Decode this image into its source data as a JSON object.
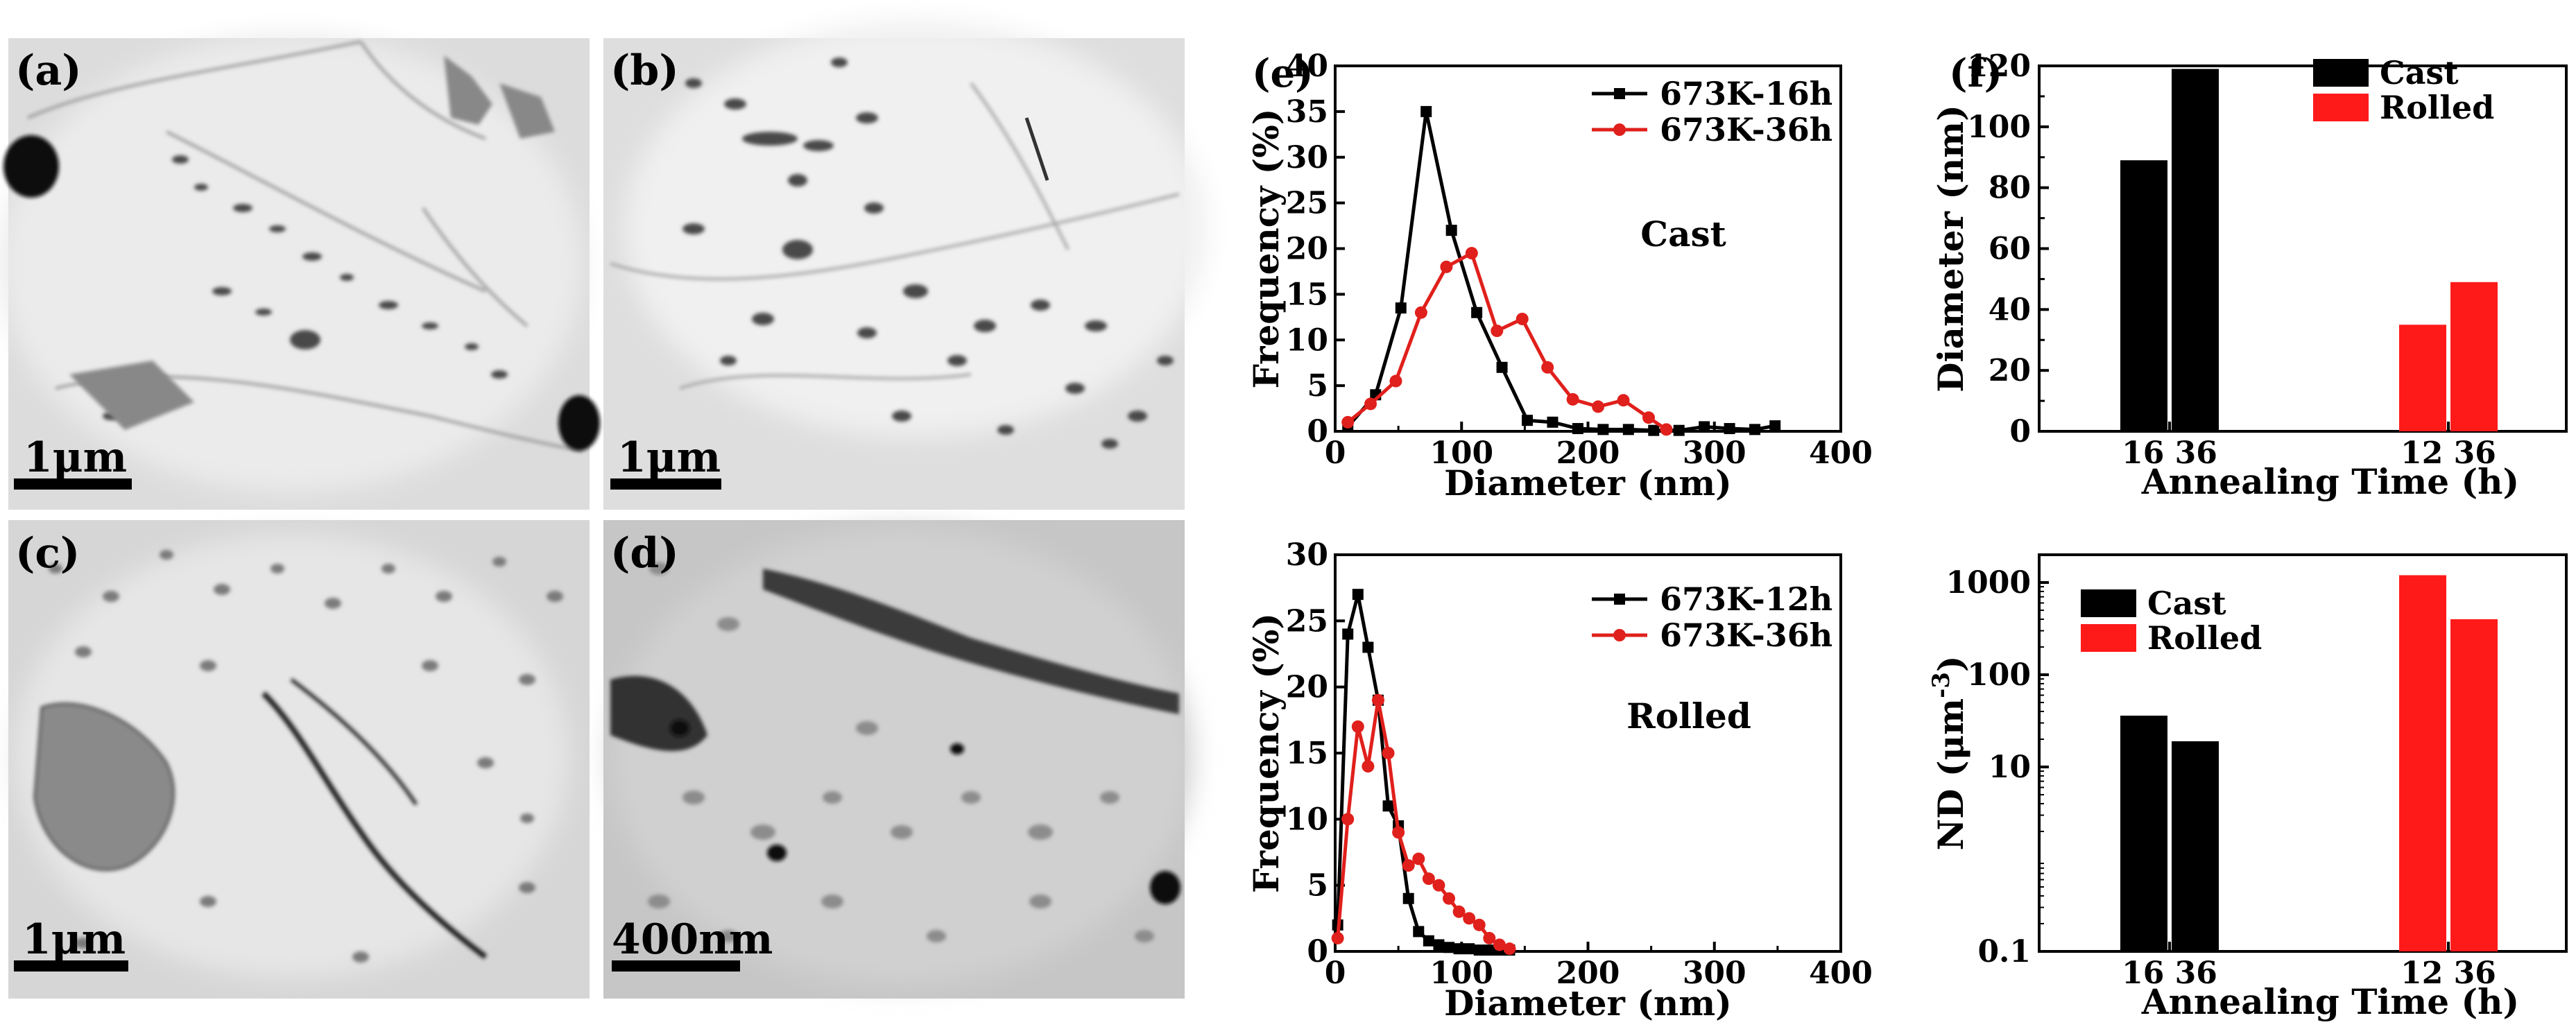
{
  "micrographs": [
    {
      "label": "(a)",
      "scale_bar": "1μm"
    },
    {
      "label": "(b)",
      "scale_bar": "1μm"
    },
    {
      "label": "(c)",
      "scale_bar": "1μm"
    },
    {
      "label": "(d)",
      "scale_bar": "400nm"
    }
  ],
  "chart_data": [
    {
      "id": "e_top",
      "panel_label": "(e)",
      "type": "line",
      "annotation": "Cast",
      "xlabel": "Diameter (nm)",
      "ylabel": "Frequency (%)",
      "xlim": [
        0,
        400
      ],
      "ylim": [
        0,
        40
      ],
      "xticks": [
        0,
        100,
        200,
        300,
        400
      ],
      "yticks": [
        0,
        5,
        10,
        15,
        20,
        25,
        30,
        35,
        40
      ],
      "legend_position": "top-right",
      "series": [
        {
          "name": "673K-16h",
          "color": "#000000",
          "marker": "square",
          "x": [
            10,
            32,
            52,
            72,
            92,
            112,
            132,
            152,
            172,
            192,
            212,
            232,
            252,
            272,
            292,
            312,
            332,
            348
          ],
          "y": [
            0.5,
            4,
            13.5,
            35,
            22,
            13,
            7,
            1.2,
            1,
            0.3,
            0.2,
            0.2,
            0.1,
            0.1,
            0.5,
            0.3,
            0.2,
            0.6
          ]
        },
        {
          "name": "673K-36h",
          "color": "#e0201c",
          "marker": "circle",
          "x": [
            10,
            28,
            48,
            68,
            88,
            108,
            128,
            148,
            168,
            188,
            208,
            228,
            248,
            262
          ],
          "y": [
            1,
            3,
            5.5,
            13,
            18,
            19.5,
            11,
            12.3,
            7,
            3.5,
            2.7,
            3.4,
            1.5,
            0.2
          ]
        }
      ]
    },
    {
      "id": "e_bottom",
      "type": "line",
      "annotation": "Rolled",
      "xlabel": "Diameter (nm)",
      "ylabel": "Frequency (%)",
      "xlim": [
        0,
        400
      ],
      "ylim": [
        0,
        30
      ],
      "xticks": [
        0,
        100,
        200,
        300,
        400
      ],
      "yticks": [
        0,
        5,
        10,
        15,
        20,
        25,
        30
      ],
      "legend_position": "top-right",
      "series": [
        {
          "name": "673K-12h",
          "color": "#000000",
          "marker": "square",
          "x": [
            2,
            10,
            18,
            26,
            34,
            42,
            50,
            58,
            66,
            74,
            82,
            90,
            98,
            106,
            114,
            122,
            130,
            138
          ],
          "y": [
            2,
            24,
            27,
            23,
            19,
            11,
            9.5,
            4,
            1.5,
            0.8,
            0.5,
            0.3,
            0.2,
            0.2,
            0.1,
            0.1,
            0.1,
            0.1
          ]
        },
        {
          "name": "673K-36h",
          "color": "#e0201c",
          "marker": "circle",
          "x": [
            2,
            10,
            18,
            26,
            34,
            42,
            50,
            58,
            66,
            74,
            82,
            90,
            98,
            106,
            114,
            122,
            130,
            138
          ],
          "y": [
            1,
            10,
            17,
            14,
            19,
            15,
            9,
            6.5,
            7,
            5.5,
            5,
            4,
            3,
            2.5,
            2,
            1,
            0.5,
            0.2
          ]
        }
      ]
    },
    {
      "id": "f_top",
      "panel_label": "(f)",
      "type": "bar",
      "xlabel": "Annealing Time (h)",
      "ylabel": "Diameter (nm)",
      "ylim": [
        0,
        120
      ],
      "yticks": [
        0,
        20,
        40,
        60,
        80,
        100,
        120
      ],
      "group_tick_labels": [
        "16 36",
        "12 36"
      ],
      "legend_position": "top-right",
      "series": [
        {
          "name": "Cast",
          "color": "#000000",
          "values": [
            89,
            119
          ]
        },
        {
          "name": "Rolled",
          "color": "#ff1a1a",
          "values": [
            35,
            49
          ]
        }
      ]
    },
    {
      "id": "f_bottom",
      "type": "bar",
      "scale": "log",
      "xlabel": "Annealing Time (h)",
      "ylabel": "ND (μm",
      "ylabel_sup": "-3",
      "ylabel_close": ")",
      "ylim": [
        0.1,
        2000
      ],
      "yticks": [
        {
          "value": 0.1,
          "label": "0.1"
        },
        {
          "value": 10,
          "label": "10"
        },
        {
          "value": 100,
          "label": "100"
        },
        {
          "value": 1000,
          "label": "1000"
        }
      ],
      "group_tick_labels": [
        "16 36",
        "12 36"
      ],
      "legend_position": "top-left",
      "series": [
        {
          "name": "Cast",
          "color": "#000000",
          "values": [
            36,
            19
          ]
        },
        {
          "name": "Rolled",
          "color": "#ff1a1a",
          "values": [
            1200,
            400
          ]
        }
      ]
    }
  ]
}
